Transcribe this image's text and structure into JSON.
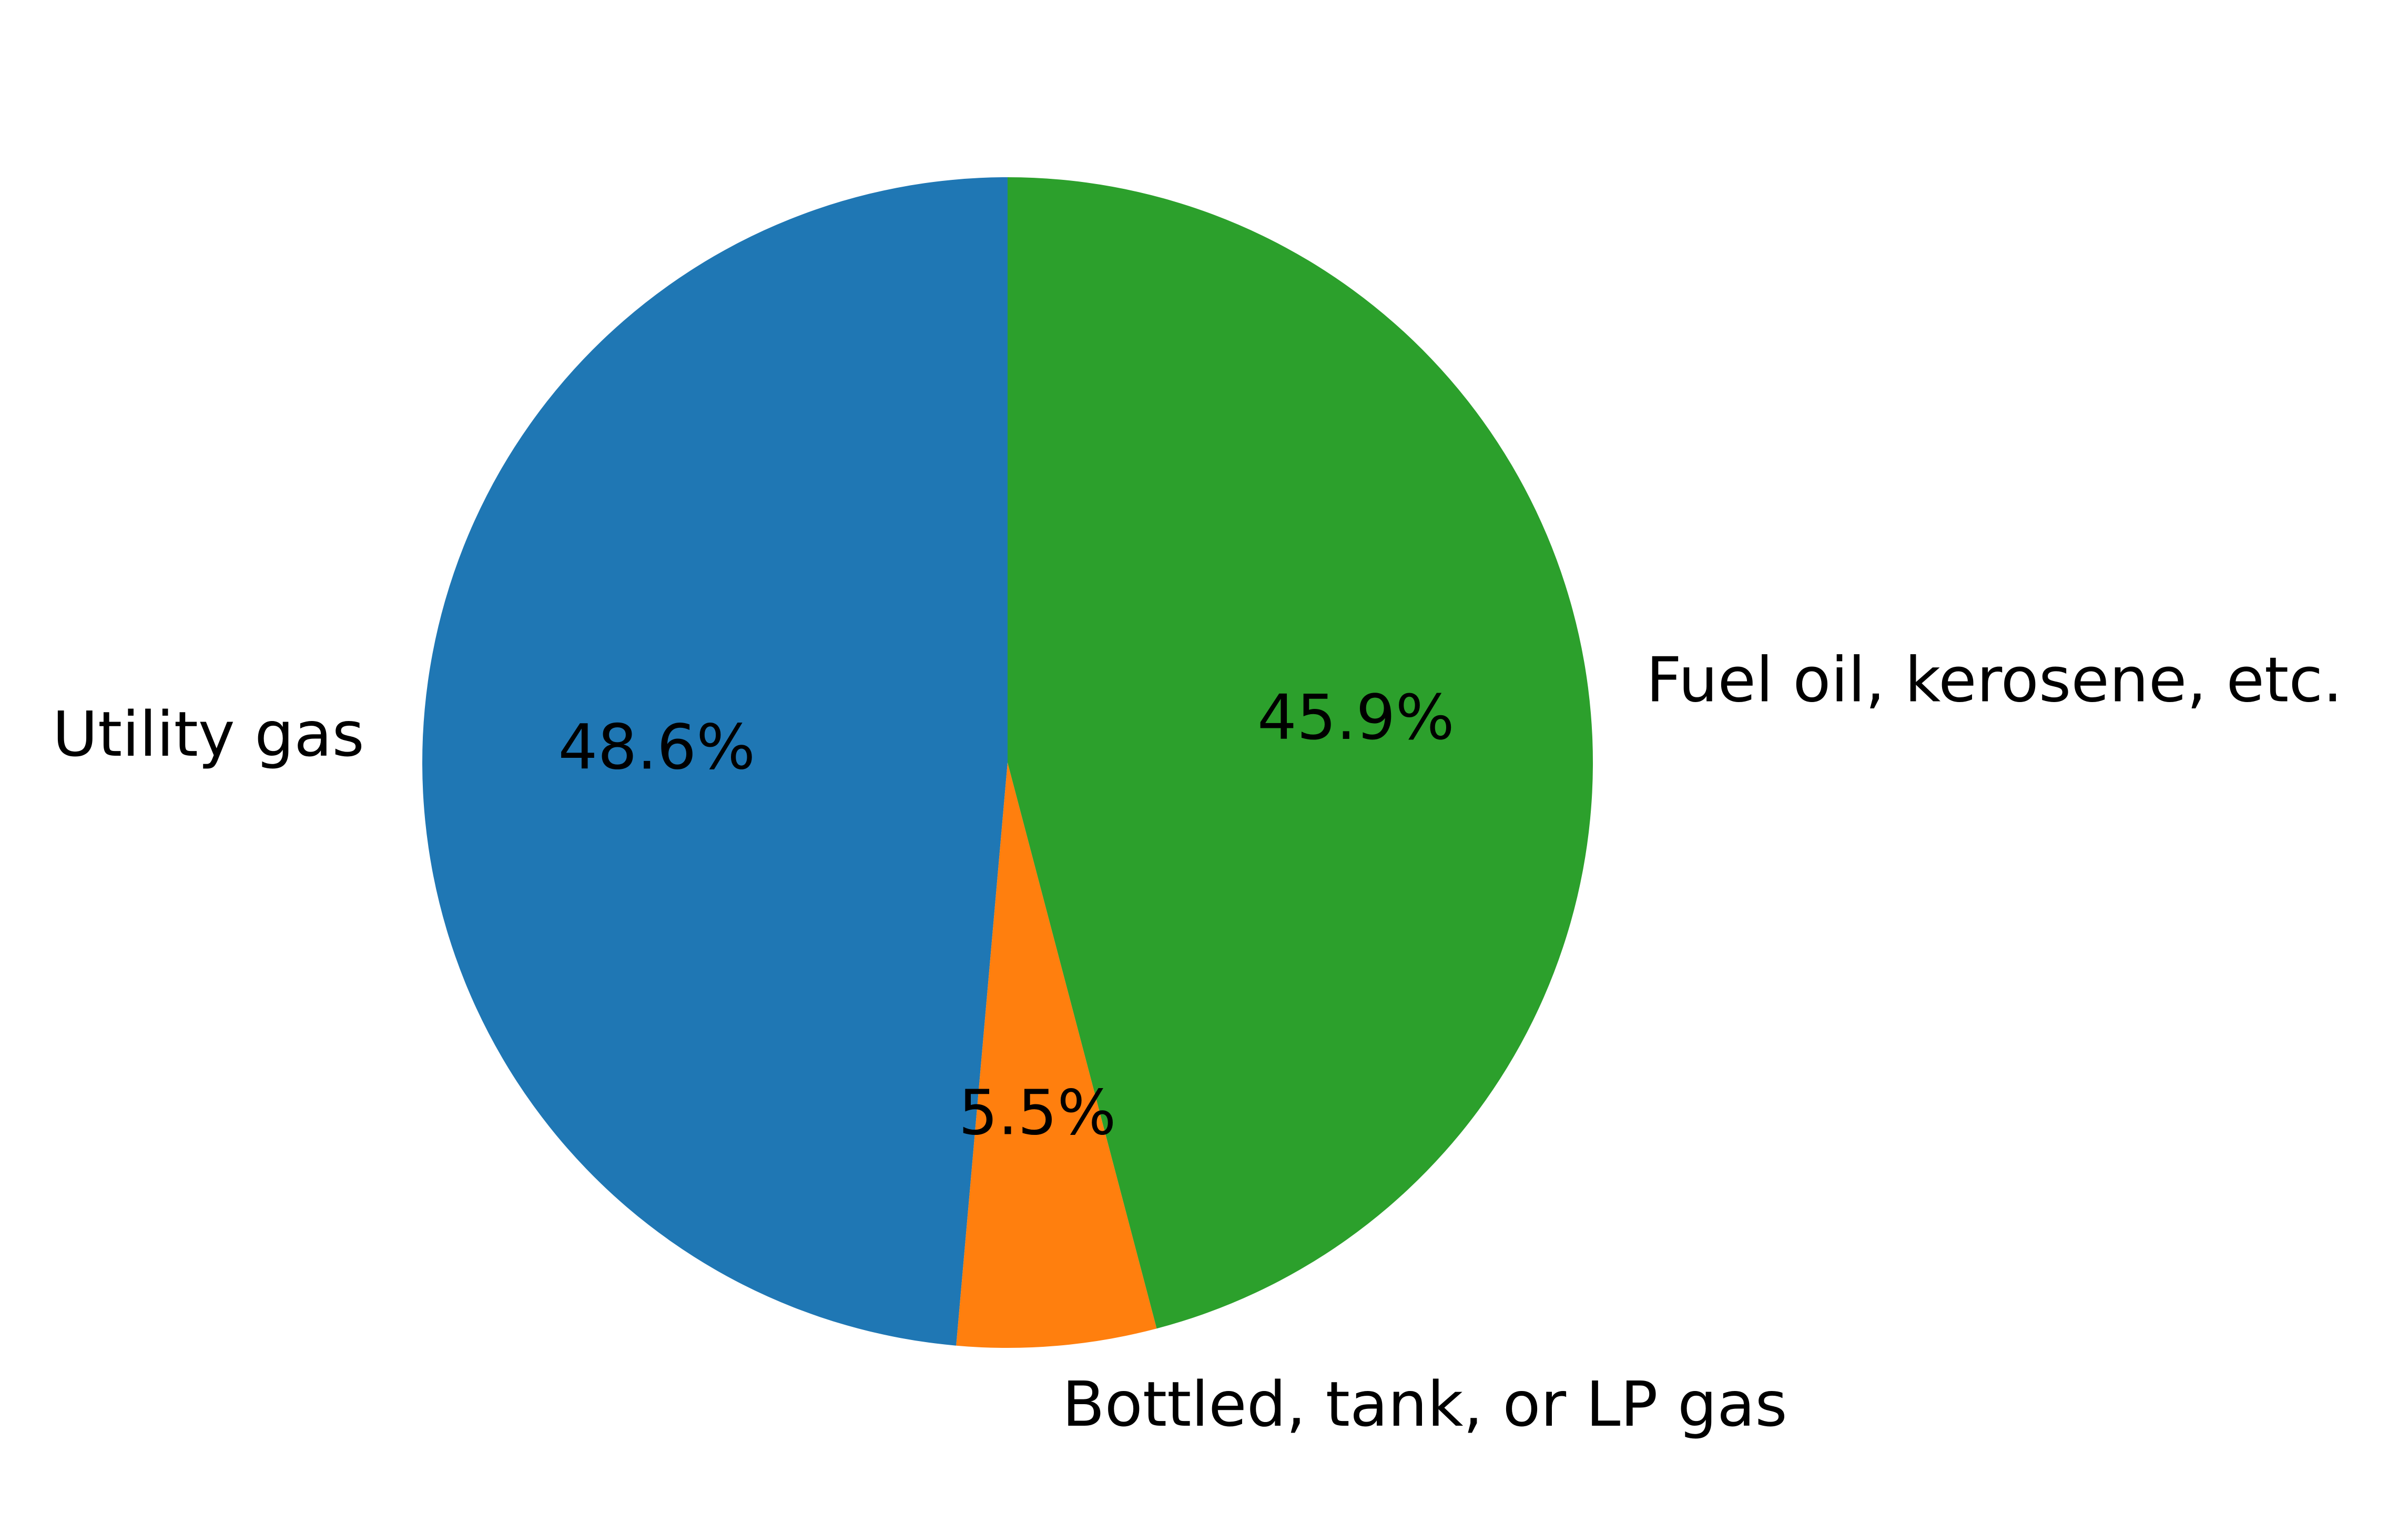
{
  "chart_data": {
    "type": "pie",
    "title": "",
    "start_angle_deg": 90,
    "direction": "counterclockwise",
    "slices": [
      {
        "label": "Utility gas",
        "value": 48.6,
        "pct_label": "48.6%",
        "color": "#1f77b4"
      },
      {
        "label": "Bottled, tank, or LP gas",
        "value": 5.5,
        "pct_label": "5.5%",
        "color": "#ff7f0e"
      },
      {
        "label": "Fuel oil, kerosene, etc.",
        "value": 45.9,
        "pct_label": "45.9%",
        "color": "#2ca02c"
      }
    ]
  }
}
